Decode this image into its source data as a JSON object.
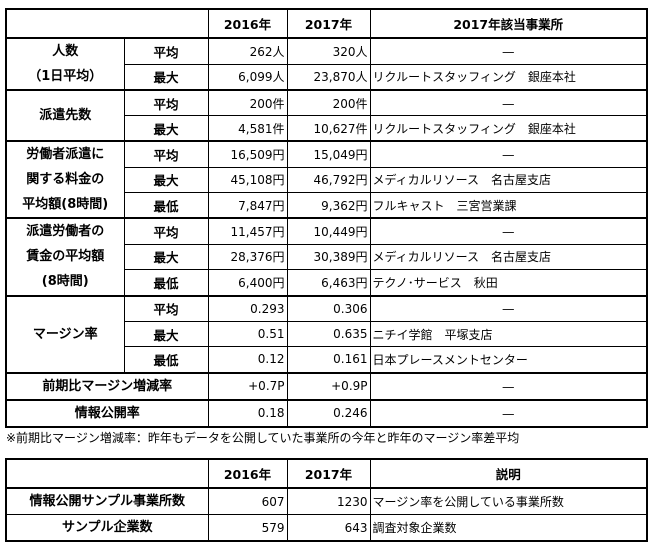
{
  "table1": {
    "headers": [
      "",
      "2016年",
      "2017年",
      "2017年該当事業所"
    ],
    "groups": [
      {
        "label_lines": [
          "人数",
          "（1日平均）"
        ],
        "rows": [
          {
            "sub": "平均",
            "y2016": "262人",
            "y2017": "320人",
            "office": "—"
          },
          {
            "sub": "最大",
            "y2016": "6,099人",
            "y2017": "23,870人",
            "office": "リクルートスタッフィング　銀座本社"
          }
        ]
      },
      {
        "label_lines": [
          "派遣先数"
        ],
        "rows": [
          {
            "sub": "平均",
            "y2016": "200件",
            "y2017": "200件",
            "office": "—"
          },
          {
            "sub": "最大",
            "y2016": "4,581件",
            "y2017": "10,627件",
            "office": "リクルートスタッフィング　銀座本社"
          }
        ]
      },
      {
        "label_lines": [
          "労働者派遣に",
          "関する料金の",
          "平均額(8時間)"
        ],
        "rows": [
          {
            "sub": "平均",
            "y2016": "16,509円",
            "y2017": "15,049円",
            "office": "—"
          },
          {
            "sub": "最大",
            "y2016": "45,108円",
            "y2017": "46,792円",
            "office": "メディカルリソース　名古屋支店"
          },
          {
            "sub": "最低",
            "y2016": "7,847円",
            "y2017": "9,362円",
            "office": "フルキャスト　三宮営業課"
          }
        ]
      },
      {
        "label_lines": [
          "派遣労働者の",
          "賃金の平均額",
          "(8時間)"
        ],
        "rows": [
          {
            "sub": "平均",
            "y2016": "11,457円",
            "y2017": "10,449円",
            "office": "—"
          },
          {
            "sub": "最大",
            "y2016": "28,376円",
            "y2017": "30,389円",
            "office": "メディカルリソース　名古屋支店"
          },
          {
            "sub": "最低",
            "y2016": "6,400円",
            "y2017": "6,463円",
            "office": "テクノ･サービス　秋田"
          }
        ]
      },
      {
        "label_lines": [
          "マージン率"
        ],
        "rows": [
          {
            "sub": "平均",
            "y2016": "0.293",
            "y2017": "0.306",
            "office": "—"
          },
          {
            "sub": "最大",
            "y2016": "0.51",
            "y2017": "0.635",
            "office": "ニチイ学館　平塚支店"
          },
          {
            "sub": "最低",
            "y2016": "0.12",
            "y2017": "0.161",
            "office": "日本プレースメントセンター"
          }
        ]
      }
    ],
    "single_rows": [
      {
        "label": "前期比マージン増減率",
        "y2016": "+0.7P",
        "y2017": "+0.9P",
        "office": "—"
      },
      {
        "label": "情報公開率",
        "y2016": "0.18",
        "y2017": "0.246",
        "office": "—"
      }
    ]
  },
  "note": "※前期比マージン増減率：昨年もデータを公開していた事業所の今年と昨年のマージン率差平均",
  "table2": {
    "headers": [
      "",
      "2016年",
      "2017年",
      "説明"
    ],
    "rows": [
      {
        "label": "情報公開サンプル事業所数",
        "y2016": "607",
        "y2017": "1230",
        "desc": "マージン率を公開している事業所数"
      },
      {
        "label": "サンプル企業数",
        "y2016": "579",
        "y2017": "643",
        "desc": "調査対象企業数"
      }
    ]
  }
}
